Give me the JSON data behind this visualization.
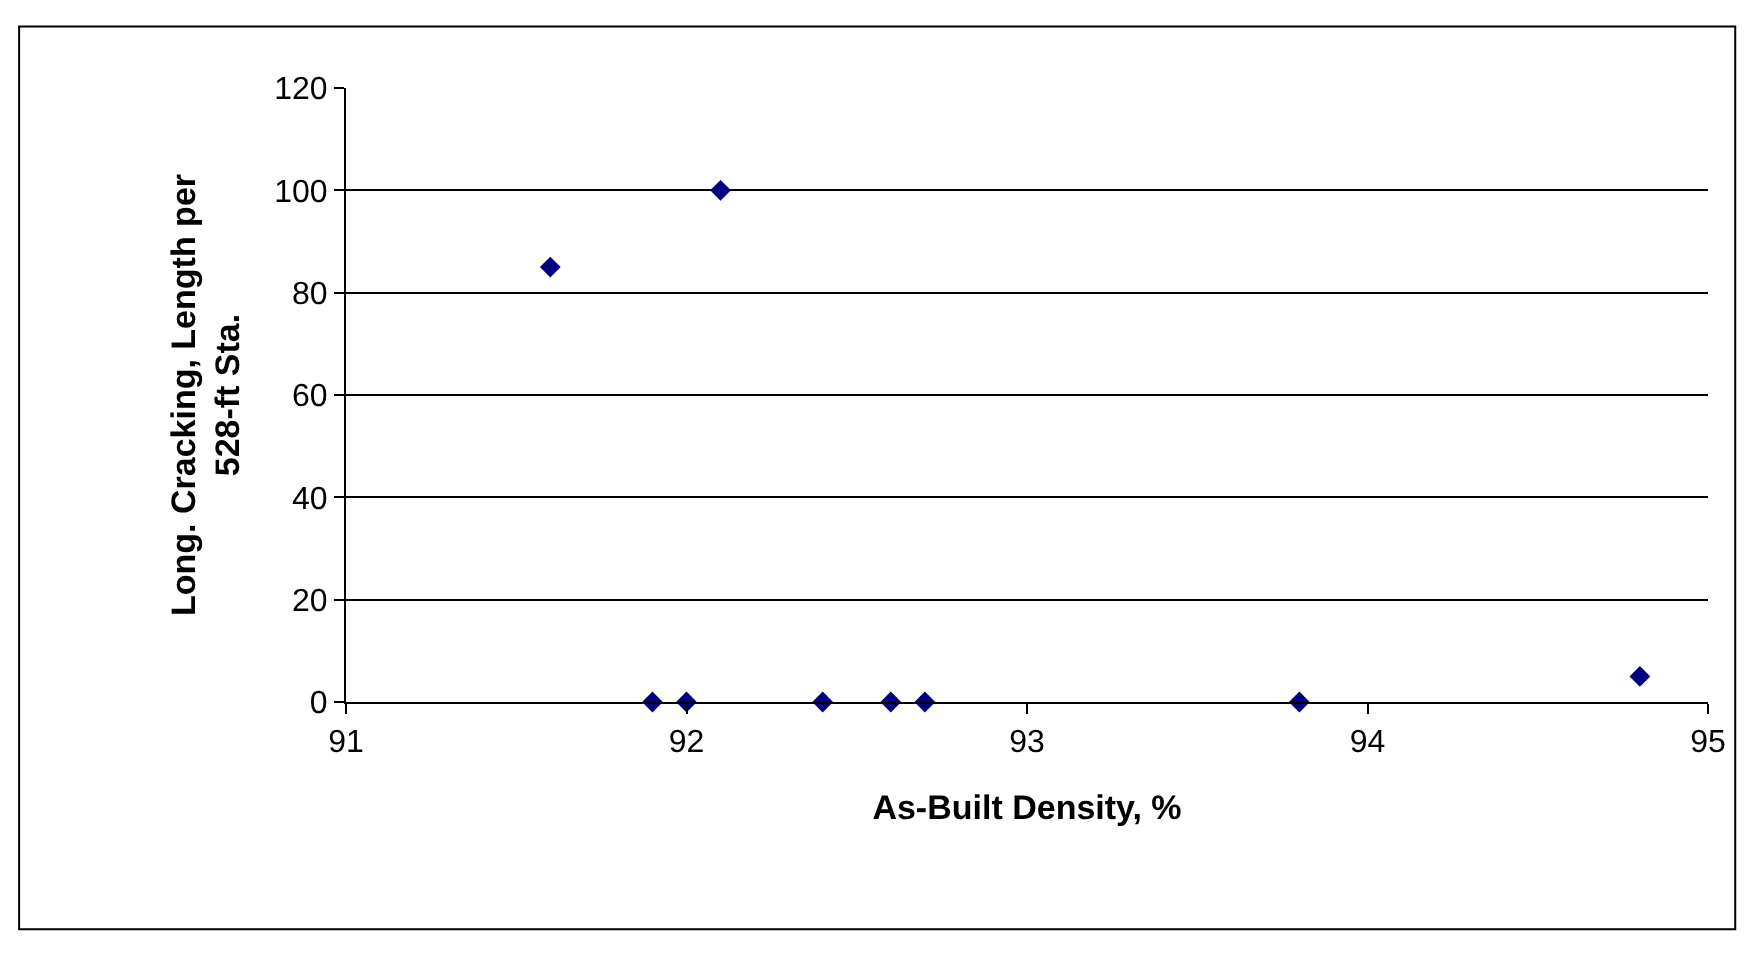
{
  "chart_data": {
    "type": "scatter",
    "xlabel": "As-Built Density, %",
    "ylabel": "Long. Cracking, Length per 528-ft Sta.",
    "x": [
      91.6,
      91.9,
      92.0,
      92.1,
      92.4,
      92.6,
      92.7,
      93.8,
      94.8
    ],
    "values": [
      85,
      0,
      0,
      100,
      0,
      0,
      0,
      0,
      5
    ],
    "color": "#000080",
    "marker": "diamond",
    "xlim": [
      91,
      95
    ],
    "xticks": [
      91,
      92,
      93,
      94,
      95
    ],
    "ylim": [
      0,
      120
    ],
    "yticks": [
      0,
      20,
      40,
      60,
      80,
      100,
      120
    ],
    "grid": "y"
  }
}
